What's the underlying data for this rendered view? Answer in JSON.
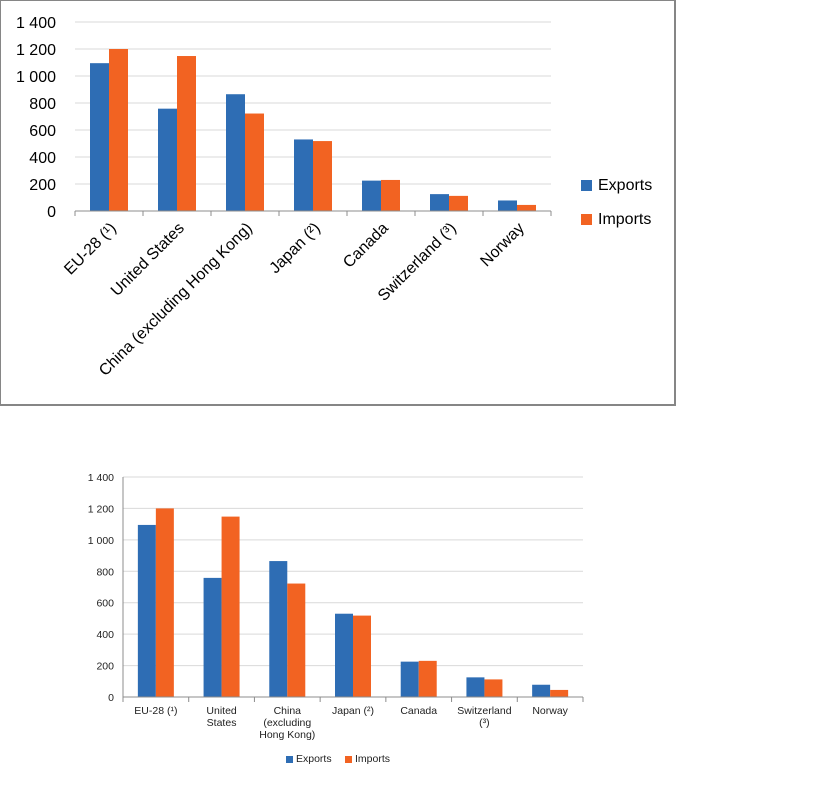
{
  "chart_data": [
    {
      "type": "bar",
      "categories": [
        "EU-28 (¹)",
        "United States",
        "China (excluding Hong Kong)",
        "Japan (²)",
        "Canada",
        "Switzerland (³)",
        "Norway"
      ],
      "series": [
        {
          "name": "Exports",
          "values": [
            1095,
            758,
            865,
            530,
            225,
            125,
            78
          ]
        },
        {
          "name": "Imports",
          "values": [
            1200,
            1148,
            722,
            518,
            230,
            112,
            45
          ]
        }
      ],
      "yticks": [
        "0",
        "200",
        "400",
        "600",
        "800",
        "1 000",
        "1 200",
        "1 400"
      ],
      "ylim": [
        0,
        1400
      ],
      "grid": true,
      "legend": "right",
      "x_tick_rotation": "diagonal"
    },
    {
      "type": "bar",
      "categories": [
        "EU-28 (¹)",
        "United States",
        "China (excluding Hong Kong)",
        "Japan (²)",
        "Canada",
        "Switzerland (³)",
        "Norway"
      ],
      "category_lines": [
        [
          "EU-28 (¹)"
        ],
        [
          "United",
          "States"
        ],
        [
          "China",
          "(excluding",
          "Hong Kong)"
        ],
        [
          "Japan (²)"
        ],
        [
          "Canada"
        ],
        [
          "Switzerland",
          "(³)"
        ],
        [
          "Norway"
        ]
      ],
      "series": [
        {
          "name": "Exports",
          "values": [
            1095,
            758,
            865,
            530,
            225,
            125,
            78
          ]
        },
        {
          "name": "Imports",
          "values": [
            1200,
            1148,
            722,
            518,
            230,
            112,
            45
          ]
        }
      ],
      "yticks": [
        "0",
        "200",
        "400",
        "600",
        "800",
        "1 000",
        "1 200",
        "1 400"
      ],
      "ylim": [
        0,
        1400
      ],
      "grid": true,
      "legend": "bottom"
    }
  ],
  "colors": {
    "exports": "#2e6db4",
    "imports": "#f26322",
    "grid": "#d9d9d9",
    "axis": "#8c8c8c"
  }
}
